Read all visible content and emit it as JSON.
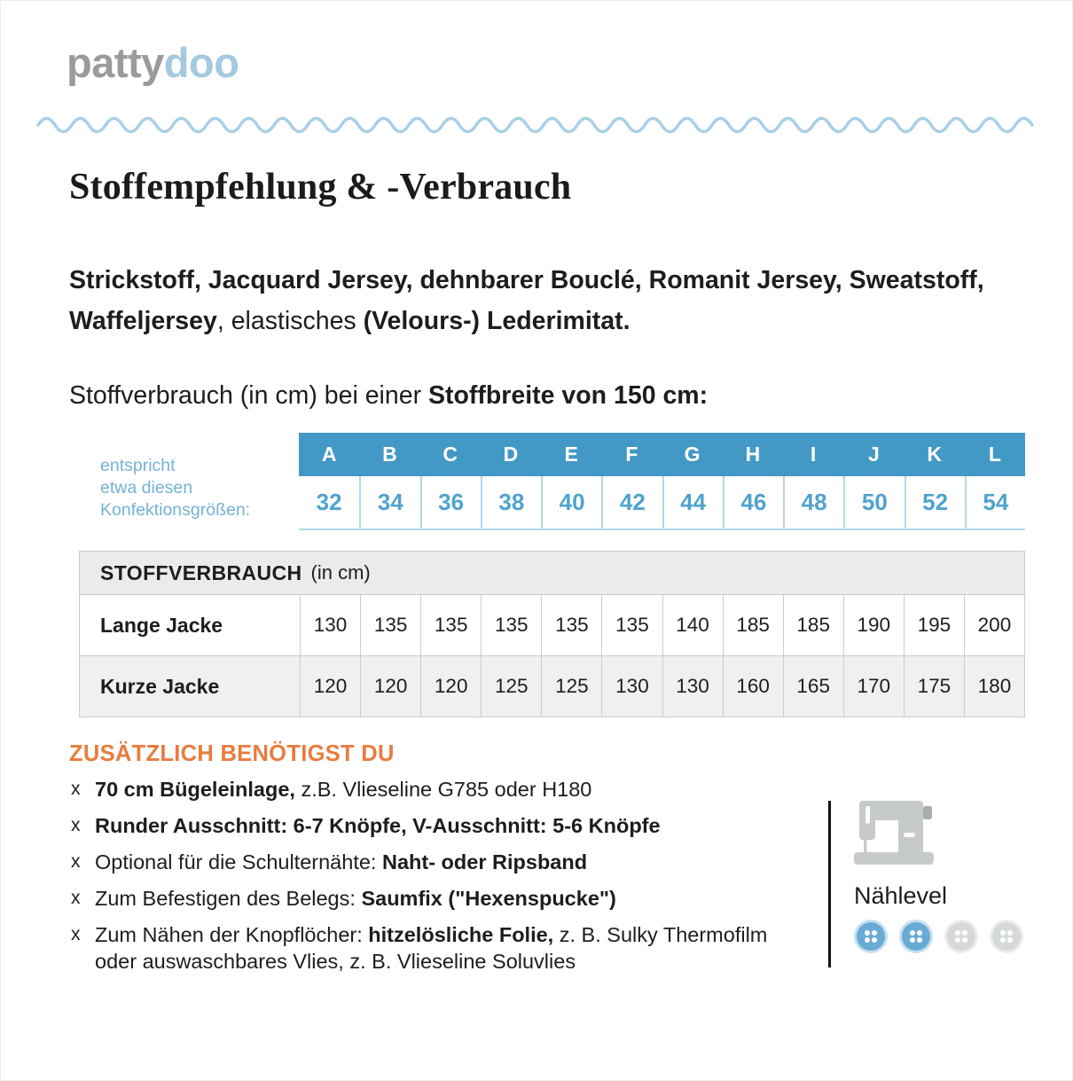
{
  "colors": {
    "blue": "#4399C5",
    "num_blue": "#4FA3CF",
    "caption_blue": "#74B2D8",
    "wave_blue": "#A9CFE6",
    "cell_border_blue": "#B5D7EB",
    "table_border": "#C9CDD0",
    "header_bg": "#E9EBEC",
    "alt_row_bg": "#EEF0F1",
    "orange": "#E87C3E",
    "logo_gray": "#9B9B9B",
    "logo_blue": "#A5C9E0",
    "text": "#1D1D1B",
    "icon_gray": "#C7CACB",
    "level_blue": "#68ACD5"
  },
  "logo": {
    "part1": "patty",
    "part2": "doo"
  },
  "title": "Stoffempfehlung & -Verbrauch",
  "intro": {
    "parts": [
      {
        "t": "Strickstoff, Jacquard Jersey, dehnbarer Bouclé, Romanit Jersey, Sweatstoff, Waffeljersey",
        "b": true
      },
      {
        "t": ", elastisches ",
        "b": false
      },
      {
        "t": "(Velours-) Lederimitat.",
        "b": true
      }
    ]
  },
  "usage_line": {
    "parts": [
      {
        "t": "Stoffverbrauch (in cm) bei einer ",
        "b": false
      },
      {
        "t": "Stoffbreite von 150 cm:",
        "b": true
      }
    ]
  },
  "size_table": {
    "caption_lines": [
      "entspricht",
      "etwa diesen",
      "Konfektionsgrößen:"
    ],
    "letters": [
      "A",
      "B",
      "C",
      "D",
      "E",
      "F",
      "G",
      "H",
      "I",
      "J",
      "K",
      "L"
    ],
    "sizes": [
      "32",
      "34",
      "36",
      "38",
      "40",
      "42",
      "44",
      "46",
      "48",
      "50",
      "52",
      "54"
    ]
  },
  "usage_table": {
    "header_bold": "STOFFVERBRAUCH",
    "header_regular": "(in cm)",
    "rows": [
      {
        "label": "Lange Jacke",
        "values": [
          "130",
          "135",
          "135",
          "135",
          "135",
          "135",
          "140",
          "185",
          "185",
          "190",
          "195",
          "200"
        ]
      },
      {
        "label": "Kurze Jacke",
        "values": [
          "120",
          "120",
          "120",
          "125",
          "125",
          "130",
          "130",
          "160",
          "165",
          "170",
          "175",
          "180"
        ]
      }
    ]
  },
  "extras": {
    "heading": "ZUSÄTZLICH BENÖTIGST DU",
    "items": [
      {
        "marker": "x",
        "parts": [
          {
            "t": "70 cm Bügeleinlage,",
            "b": true
          },
          {
            "t": " z.B. Vlieseline G785 oder H180",
            "b": false
          }
        ]
      },
      {
        "marker": "x",
        "parts": [
          {
            "t": "Runder Ausschnitt: 6-7 Knöpfe, V-Ausschnitt: 5-6 Knöpfe",
            "b": true
          }
        ]
      },
      {
        "marker": "x",
        "parts": [
          {
            "t": "Optional für die Schulternähte: ",
            "b": false
          },
          {
            "t": "Naht- oder Ripsband",
            "b": true
          }
        ]
      },
      {
        "marker": "x",
        "parts": [
          {
            "t": "Zum Befestigen des Belegs: ",
            "b": false
          },
          {
            "t": "Saumfix (\"Hexenspucke\")",
            "b": true
          }
        ]
      },
      {
        "marker": "x",
        "parts": [
          {
            "t": "Zum Nähen der Knopflöcher: ",
            "b": false
          },
          {
            "t": "hitzelösliche Folie,",
            "b": true
          },
          {
            "t": " z. B. Sulky Thermofilm oder auswaschbares Vlies, z. B. Vlieseline Soluvlies",
            "b": false
          }
        ]
      }
    ]
  },
  "level": {
    "label": "Nählevel",
    "levels": [
      true,
      true,
      false,
      false
    ]
  }
}
